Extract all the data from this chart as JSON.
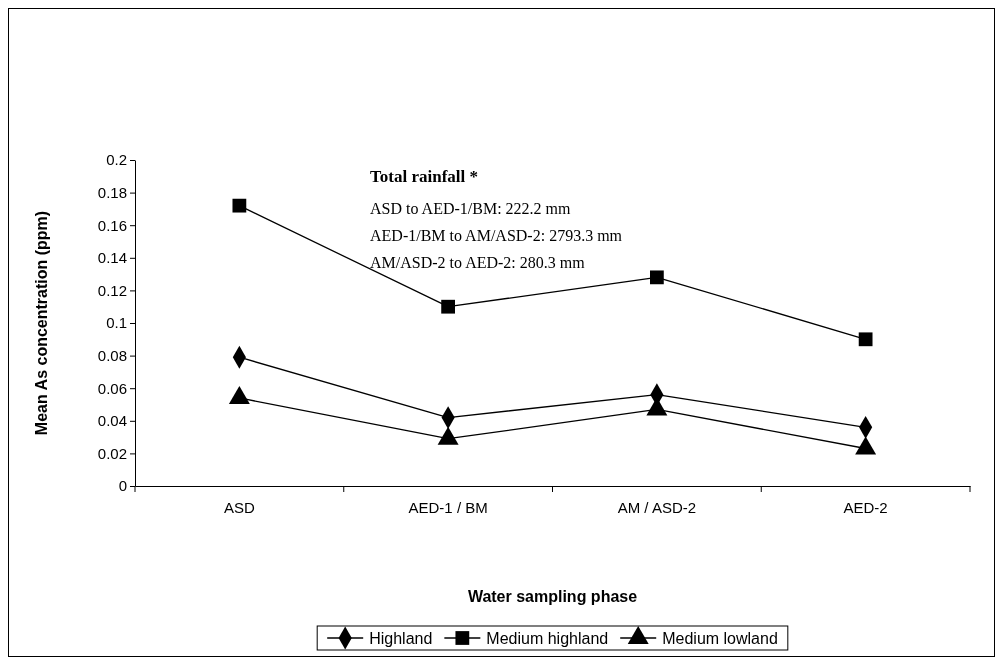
{
  "chart_data": {
    "type": "line",
    "xlabel": "Water sampling phase",
    "ylabel": "Mean As concentration (ppm)",
    "categories": [
      "ASD",
      "AED-1 / BM",
      "AM / ASD-2",
      "AED-2"
    ],
    "series": [
      {
        "name": "Highland",
        "color": "#000000",
        "marker": "diamond",
        "values": [
          0.079,
          0.042,
          0.056,
          0.036
        ]
      },
      {
        "name": "Medium highland",
        "color": "#000000",
        "marker": "square",
        "values": [
          0.172,
          0.11,
          0.128,
          0.09
        ]
      },
      {
        "name": "Medium lowland",
        "color": "#000000",
        "marker": "triangle",
        "values": [
          0.054,
          0.029,
          0.047,
          0.023
        ]
      }
    ],
    "ylim": [
      0,
      0.2
    ],
    "yticks": [
      0,
      0.02,
      0.04,
      0.06,
      0.08,
      0.1,
      0.12,
      0.14,
      0.16,
      0.18,
      0.2
    ],
    "grid": false,
    "legend": "bottom",
    "line_style": "solid",
    "annotations": [
      "Total rainfall *",
      "ASD to AED-1/BM: 222.2 mm",
      "AED-1/BM to AM/ASD-2: 2793.3 mm",
      "AM/ASD-2 to AED-2: 280.3 mm"
    ]
  }
}
